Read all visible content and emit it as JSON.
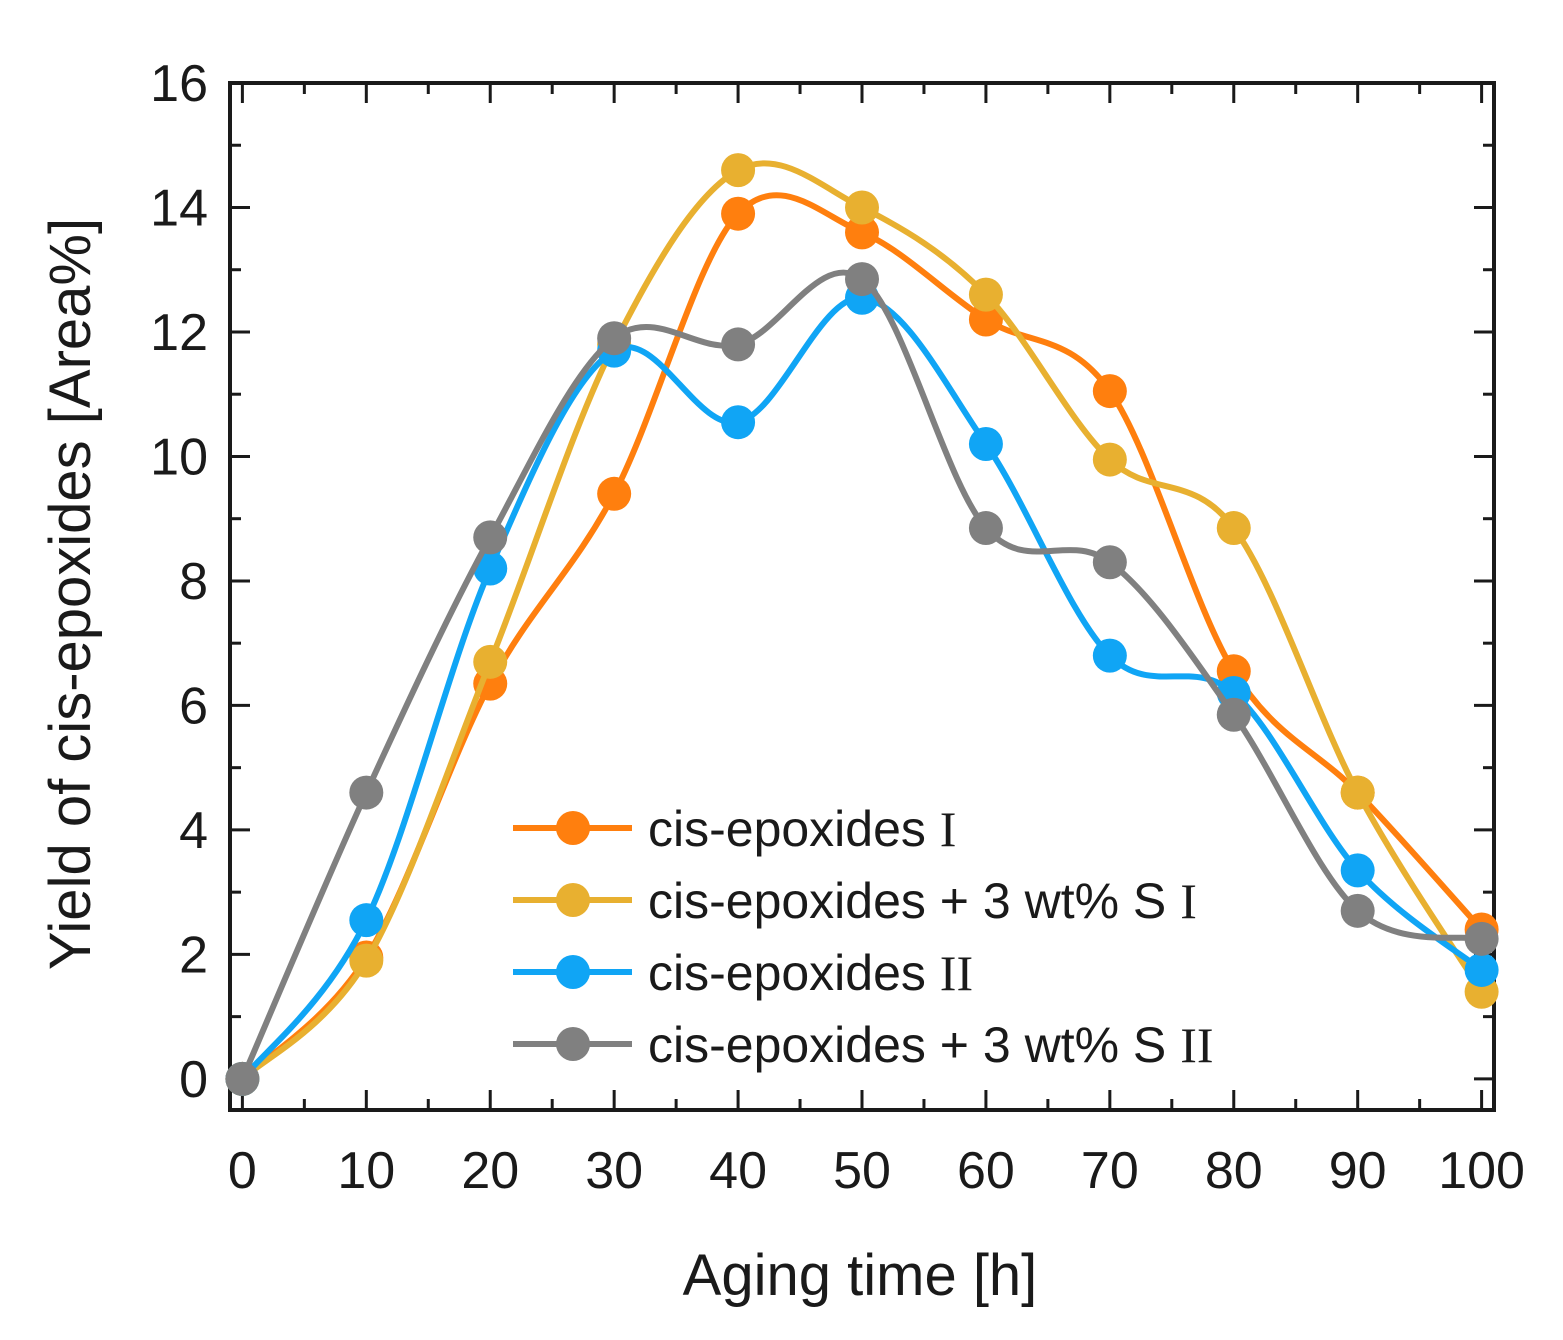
{
  "chart_data": {
    "type": "line",
    "title": "",
    "xlabel": "Aging time [h]",
    "ylabel": "Yield of cis-epoxides [Area%]",
    "xlim": [
      -1,
      101
    ],
    "ylim": [
      -0.5,
      16
    ],
    "x_ticks": [
      0,
      10,
      20,
      30,
      40,
      50,
      60,
      70,
      80,
      90,
      100
    ],
    "x_tick_labels": [
      "0",
      "10",
      "20",
      "30",
      "40",
      "50",
      "60",
      "70",
      "80",
      "90",
      "100"
    ],
    "y_ticks": [
      0,
      2,
      4,
      6,
      8,
      10,
      12,
      14,
      16
    ],
    "y_tick_labels": [
      "0",
      "2",
      "4",
      "6",
      "8",
      "10",
      "12",
      "14",
      "16"
    ],
    "grid": false,
    "legend_position": "lower-center",
    "x": [
      0,
      10,
      20,
      30,
      40,
      50,
      60,
      70,
      80,
      90,
      100
    ],
    "series": [
      {
        "name": "cis-epoxides",
        "suffix": "I",
        "color": "#FF7F0E",
        "values": [
          0,
          1.95,
          6.35,
          9.4,
          13.9,
          13.6,
          12.2,
          11.05,
          6.55,
          4.6,
          2.4
        ]
      },
      {
        "name": "cis-epoxides + 3 wt% S",
        "suffix": "I",
        "color": "#E8B030",
        "values": [
          0,
          1.9,
          6.7,
          11.8,
          14.6,
          14.0,
          12.6,
          9.95,
          8.85,
          4.6,
          1.4
        ]
      },
      {
        "name": "cis-epoxides",
        "suffix": "II",
        "color": "#10A5F5",
        "values": [
          0,
          2.55,
          8.2,
          11.7,
          10.55,
          12.55,
          10.2,
          6.8,
          6.2,
          3.35,
          1.75
        ]
      },
      {
        "name": "cis-epoxides + 3 wt% S",
        "suffix": "II",
        "color": "#808080",
        "values": [
          0,
          4.6,
          8.7,
          11.9,
          11.8,
          12.85,
          8.85,
          8.3,
          5.85,
          2.7,
          2.25
        ]
      }
    ]
  }
}
